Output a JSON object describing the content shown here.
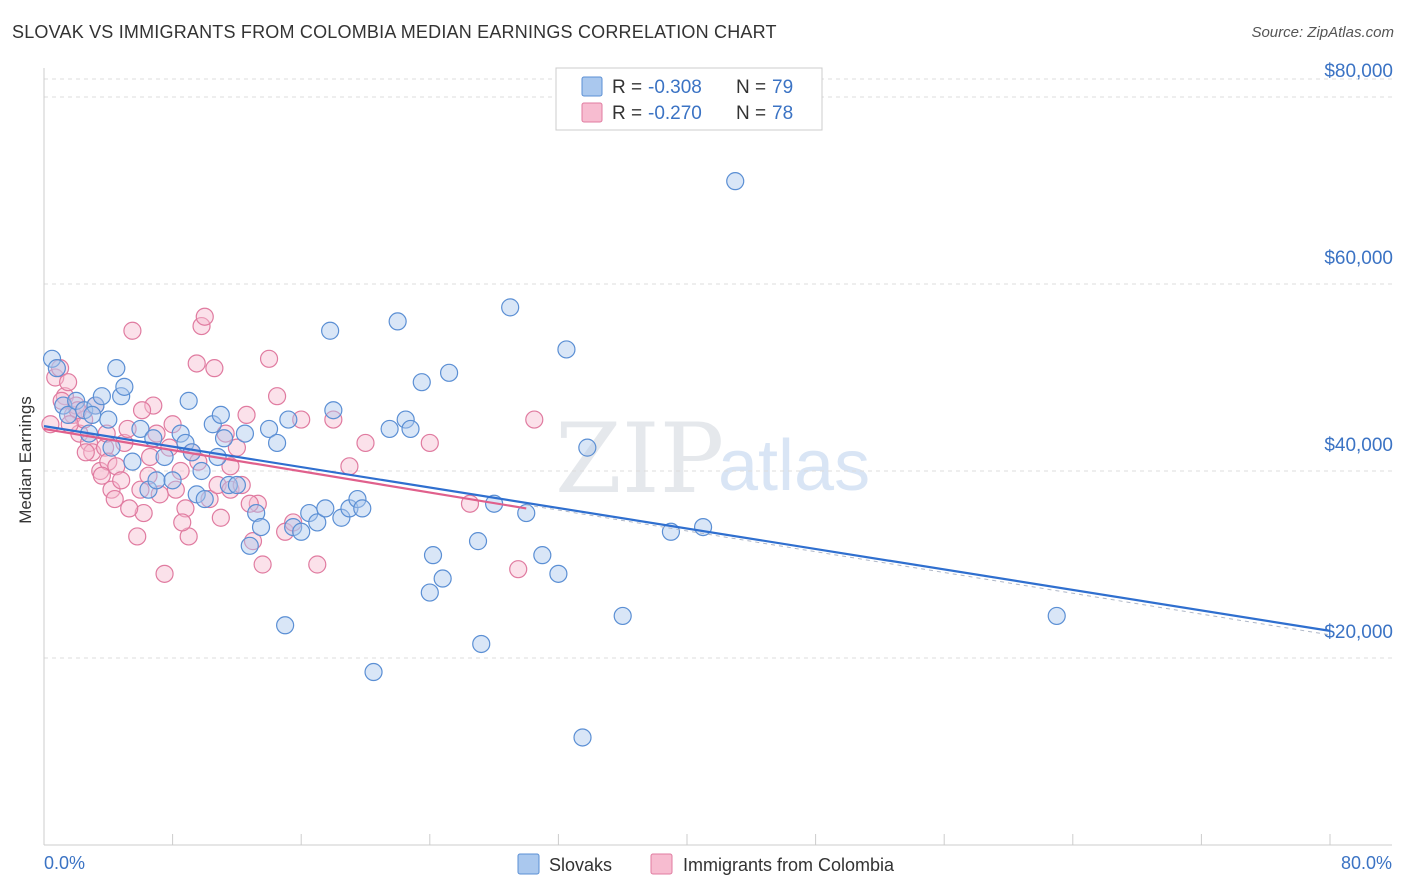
{
  "title": "SLOVAK VS IMMIGRANTS FROM COLOMBIA MEDIAN EARNINGS CORRELATION CHART",
  "source": "Source: ZipAtlas.com",
  "watermark": {
    "zip": "ZIP",
    "atlas": "atlas"
  },
  "legend_top": [
    {
      "r_label": "R =",
      "r_value": "-0.308",
      "n_label": "N =",
      "n_value": "79"
    },
    {
      "r_label": "R =",
      "r_value": "-0.270",
      "n_label": "N =",
      "n_value": "78"
    }
  ],
  "colors": {
    "blue_fill": "#aac8ee",
    "blue_stroke": "#5b8fd4",
    "blue_line": "#2f6fcf",
    "pink_fill": "#f7bcd0",
    "pink_stroke": "#e07ba0",
    "pink_line": "#e0608c",
    "accent_text": "#3b73c4",
    "grid": "#dddddd"
  },
  "chart_data": {
    "type": "scatter",
    "title": "SLOVAK VS IMMIGRANTS FROM COLOMBIA MEDIAN EARNINGS CORRELATION CHART",
    "xlabel": "",
    "ylabel": "Median Earnings",
    "xlim": [
      0,
      80
    ],
    "ylim": [
      0,
      84000
    ],
    "x_tick_labels": [
      "0.0%",
      "80.0%"
    ],
    "y_ticks": [
      20000,
      40000,
      60000,
      80000
    ],
    "y_tick_labels": [
      "$20,000",
      "$40,000",
      "$60,000",
      "$80,000"
    ],
    "legend": [
      "Slovaks",
      "Immigrants from Colombia"
    ],
    "series": [
      {
        "name": "Slovaks",
        "r": -0.308,
        "n": 79,
        "trend": {
          "x": [
            0,
            80
          ],
          "y": [
            44800,
            22900
          ]
        },
        "points": [
          [
            0.5,
            52000
          ],
          [
            0.8,
            51000
          ],
          [
            1.2,
            47000
          ],
          [
            1.5,
            46000
          ],
          [
            2.0,
            47500
          ],
          [
            2.5,
            46500
          ],
          [
            3.2,
            47000
          ],
          [
            3.6,
            48000
          ],
          [
            4.5,
            51000
          ],
          [
            4.8,
            48000
          ],
          [
            3.0,
            46000
          ],
          [
            4.0,
            45500
          ],
          [
            5.5,
            41000
          ],
          [
            6.0,
            44500
          ],
          [
            6.5,
            38000
          ],
          [
            5.0,
            49000
          ],
          [
            7.0,
            39000
          ],
          [
            7.5,
            41500
          ],
          [
            8.0,
            39000
          ],
          [
            8.5,
            44000
          ],
          [
            9.0,
            47500
          ],
          [
            8.8,
            43000
          ],
          [
            9.5,
            37500
          ],
          [
            10.0,
            37000
          ],
          [
            9.8,
            40000
          ],
          [
            10.5,
            45000
          ],
          [
            11.0,
            46000
          ],
          [
            11.5,
            38500
          ],
          [
            12.0,
            38500
          ],
          [
            11.2,
            43500
          ],
          [
            12.5,
            44000
          ],
          [
            12.8,
            32000
          ],
          [
            13.2,
            35500
          ],
          [
            13.5,
            34000
          ],
          [
            14.0,
            44500
          ],
          [
            14.5,
            43000
          ],
          [
            15.0,
            23500
          ],
          [
            15.5,
            34000
          ],
          [
            16.0,
            33500
          ],
          [
            16.5,
            35500
          ],
          [
            17.0,
            34500
          ],
          [
            17.5,
            36000
          ],
          [
            17.8,
            55000
          ],
          [
            18.0,
            46500
          ],
          [
            18.5,
            35000
          ],
          [
            19.0,
            36000
          ],
          [
            19.5,
            37000
          ],
          [
            19.8,
            36000
          ],
          [
            20.5,
            18500
          ],
          [
            21.5,
            44500
          ],
          [
            22.0,
            56000
          ],
          [
            22.5,
            45500
          ],
          [
            22.8,
            44500
          ],
          [
            23.5,
            49500
          ],
          [
            24.0,
            27000
          ],
          [
            24.2,
            31000
          ],
          [
            24.8,
            28500
          ],
          [
            25.2,
            50500
          ],
          [
            27.0,
            32500
          ],
          [
            27.2,
            21500
          ],
          [
            28.0,
            36500
          ],
          [
            29.0,
            57500
          ],
          [
            30.0,
            35500
          ],
          [
            31.0,
            31000
          ],
          [
            32.0,
            29000
          ],
          [
            32.5,
            53000
          ],
          [
            33.5,
            11500
          ],
          [
            33.8,
            42500
          ],
          [
            36.0,
            24500
          ],
          [
            39.0,
            33500
          ],
          [
            41.0,
            34000
          ],
          [
            43.0,
            71000
          ],
          [
            63.0,
            24500
          ],
          [
            6.8,
            43500
          ],
          [
            2.8,
            44000
          ],
          [
            4.2,
            42500
          ],
          [
            15.2,
            45500
          ],
          [
            9.2,
            42000
          ],
          [
            10.8,
            41500
          ]
        ]
      },
      {
        "name": "Immigrants from Colombia",
        "r": -0.27,
        "n": 78,
        "trend": {
          "x": [
            0,
            30
          ],
          "y": [
            44500,
            36000
          ]
        },
        "points": [
          [
            0.4,
            45000
          ],
          [
            0.7,
            50000
          ],
          [
            1.0,
            51000
          ],
          [
            1.3,
            48000
          ],
          [
            1.5,
            49500
          ],
          [
            1.8,
            46000
          ],
          [
            2.0,
            47000
          ],
          [
            2.2,
            44000
          ],
          [
            2.5,
            45500
          ],
          [
            2.8,
            43000
          ],
          [
            3.0,
            42000
          ],
          [
            3.2,
            47000
          ],
          [
            3.5,
            40000
          ],
          [
            3.8,
            42500
          ],
          [
            4.0,
            41000
          ],
          [
            4.2,
            38000
          ],
          [
            4.5,
            40500
          ],
          [
            4.8,
            39000
          ],
          [
            5.0,
            43000
          ],
          [
            5.2,
            44500
          ],
          [
            5.5,
            55000
          ],
          [
            5.8,
            33000
          ],
          [
            6.0,
            38000
          ],
          [
            6.2,
            35500
          ],
          [
            6.5,
            39500
          ],
          [
            6.8,
            47000
          ],
          [
            7.0,
            44000
          ],
          [
            7.2,
            37500
          ],
          [
            7.5,
            29000
          ],
          [
            7.8,
            42500
          ],
          [
            8.0,
            45000
          ],
          [
            8.2,
            38000
          ],
          [
            8.5,
            40000
          ],
          [
            8.8,
            36000
          ],
          [
            9.0,
            33000
          ],
          [
            9.2,
            42000
          ],
          [
            9.5,
            51500
          ],
          [
            9.8,
            55500
          ],
          [
            10.0,
            56500
          ],
          [
            10.3,
            37000
          ],
          [
            10.6,
            51000
          ],
          [
            10.8,
            38500
          ],
          [
            11.0,
            35000
          ],
          [
            11.3,
            44000
          ],
          [
            11.6,
            38000
          ],
          [
            12.0,
            42500
          ],
          [
            12.3,
            38500
          ],
          [
            12.6,
            46000
          ],
          [
            13.0,
            32500
          ],
          [
            13.3,
            36500
          ],
          [
            13.6,
            30000
          ],
          [
            14.0,
            52000
          ],
          [
            14.5,
            48000
          ],
          [
            15.0,
            33500
          ],
          [
            15.5,
            34500
          ],
          [
            16.0,
            45500
          ],
          [
            17.0,
            30000
          ],
          [
            18.0,
            45500
          ],
          [
            19.0,
            40500
          ],
          [
            20.0,
            43000
          ],
          [
            24.0,
            43000
          ],
          [
            26.5,
            36500
          ],
          [
            29.5,
            29500
          ],
          [
            30.5,
            45500
          ],
          [
            1.1,
            47500
          ],
          [
            2.1,
            46500
          ],
          [
            3.6,
            39500
          ],
          [
            4.4,
            37000
          ],
          [
            6.6,
            41500
          ],
          [
            8.6,
            34500
          ],
          [
            11.6,
            40500
          ],
          [
            12.8,
            36500
          ],
          [
            5.3,
            36000
          ],
          [
            2.6,
            42000
          ],
          [
            3.9,
            44000
          ],
          [
            6.1,
            46500
          ],
          [
            9.6,
            41000
          ],
          [
            1.6,
            45000
          ]
        ]
      }
    ]
  },
  "axes": {
    "y_title": "Median Earnings"
  },
  "bottom_legend": [
    {
      "label": "Slovaks"
    },
    {
      "label": "Immigrants from Colombia"
    }
  ]
}
